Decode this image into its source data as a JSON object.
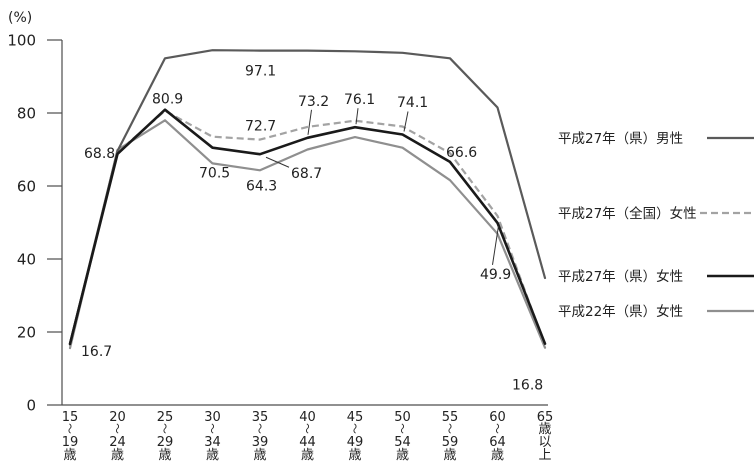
{
  "chart_data": {
    "type": "line",
    "ylabel": "(%)",
    "ylim": [
      0,
      100
    ],
    "yticks": [
      0,
      20,
      40,
      60,
      80,
      100
    ],
    "categories": [
      [
        "15",
        "～",
        "19",
        "歳"
      ],
      [
        "20",
        "～",
        "24",
        "歳"
      ],
      [
        "25",
        "～",
        "29",
        "歳"
      ],
      [
        "30",
        "～",
        "34",
        "歳"
      ],
      [
        "35",
        "～",
        "39",
        "歳"
      ],
      [
        "40",
        "～",
        "44",
        "歳"
      ],
      [
        "45",
        "～",
        "49",
        "歳"
      ],
      [
        "50",
        "～",
        "54",
        "歳"
      ],
      [
        "55",
        "～",
        "59",
        "歳"
      ],
      [
        "60",
        "～",
        "64",
        "歳"
      ],
      [
        "65",
        "歳",
        "以",
        "上"
      ]
    ],
    "series": [
      {
        "name": "平成27年（県）男性",
        "color": "#5a5a5a",
        "dashed": false,
        "values": [
          16.9,
          69.6,
          95.0,
          97.2,
          97.1,
          97.1,
          96.9,
          96.5,
          95.0,
          81.5,
          34.8
        ]
      },
      {
        "name": "平成27年（全国）女性",
        "color": "#a3a3a3",
        "dashed": true,
        "values": [
          16.1,
          69.2,
          80.6,
          73.5,
          72.7,
          76.2,
          77.9,
          76.3,
          69.0,
          51.8,
          16.3
        ]
      },
      {
        "name": "平成27年（県）女性",
        "color": "#1a1a1a",
        "dashed": false,
        "values": [
          16.7,
          68.8,
          80.9,
          70.5,
          68.7,
          73.2,
          76.1,
          74.1,
          66.6,
          49.9,
          16.8
        ]
      },
      {
        "name": "平成22年（県）女性",
        "color": "#8f8f8f",
        "dashed": false,
        "values": [
          15.6,
          69.9,
          78.0,
          66.2,
          64.3,
          70.0,
          73.4,
          70.5,
          61.6,
          46.9,
          15.7
        ]
      }
    ],
    "data_labels": [
      {
        "series": 0,
        "index": 4,
        "text": "97.1"
      },
      {
        "series": 1,
        "index": 4,
        "text": "72.7"
      },
      {
        "series": 2,
        "index": 0,
        "text": "16.7"
      },
      {
        "series": 2,
        "index": 1,
        "text": "68.8"
      },
      {
        "series": 2,
        "index": 2,
        "text": "80.9"
      },
      {
        "series": 2,
        "index": 3,
        "text": "70.5"
      },
      {
        "series": 2,
        "index": 4,
        "text": "68.7"
      },
      {
        "series": 2,
        "index": 5,
        "text": "73.2"
      },
      {
        "series": 2,
        "index": 6,
        "text": "76.1"
      },
      {
        "series": 2,
        "index": 7,
        "text": "74.1"
      },
      {
        "series": 2,
        "index": 8,
        "text": "66.6"
      },
      {
        "series": 2,
        "index": 9,
        "text": "49.9"
      },
      {
        "series": 2,
        "index": 10,
        "text": "16.8"
      },
      {
        "series": 3,
        "index": 4,
        "text": "64.3"
      }
    ],
    "grid": false,
    "legend_position": "right"
  }
}
